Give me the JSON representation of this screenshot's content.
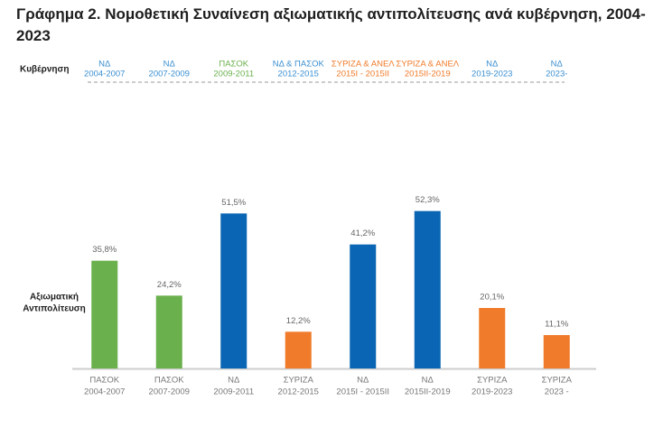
{
  "chart_data": {
    "type": "bar",
    "title": "Γράφημα 2. Νομοθετική Συναίνεση αξιωματικής αντιπολίτευσης ανά κυβέρνηση, 2004-2023",
    "government_label": "Κυβέρνηση",
    "governments": [
      {
        "name": "ΝΔ",
        "period": "2004-2007",
        "color": "#3a8fd0"
      },
      {
        "name": "ΝΔ",
        "period": "2007-2009",
        "color": "#3a8fd0"
      },
      {
        "name": "ΠΑΣΟΚ",
        "period": "2009-2011",
        "color": "#6ab04c"
      },
      {
        "name": "ΝΔ & ΠΑΣΟΚ",
        "period": "2012-2015",
        "color": "#3a8fd0"
      },
      {
        "name": "ΣΥΡΙΖΑ & ΑΝΕΛ",
        "period": "2015Ι - 2015ΙΙ",
        "color": "#f07b2a"
      },
      {
        "name": "ΣΥΡΙΖΑ & ΑΝΕΛ",
        "period": "2015ΙΙ-2019",
        "color": "#f07b2a"
      },
      {
        "name": "ΝΔ",
        "period": "2019-2023",
        "color": "#3a8fd0"
      },
      {
        "name": "ΝΔ",
        "period": "2023-",
        "color": "#3a8fd0"
      }
    ],
    "ylabel": [
      "Αξιωματική",
      "Αντιπολίτευση"
    ],
    "categories": [
      [
        "ΠΑΣΟΚ",
        "2004-2007"
      ],
      [
        "ΠΑΣΟΚ",
        "2007-2009"
      ],
      [
        "ΝΔ",
        "2009-2011"
      ],
      [
        "ΣΥΡΙΖΑ",
        "2012-2015"
      ],
      [
        "ΝΔ",
        "2015Ι - 2015ΙΙ"
      ],
      [
        "ΝΔ",
        "2015ΙΙ-2019"
      ],
      [
        "ΣΥΡΙΖΑ",
        "2019-2023"
      ],
      [
        "ΣΥΡΙΖΑ",
        "2023 -"
      ]
    ],
    "values": [
      35.8,
      24.2,
      51.5,
      12.2,
      41.2,
      52.3,
      20.1,
      11.1
    ],
    "value_labels": [
      "35,8%",
      "24,2%",
      "51,5%",
      "12,2%",
      "41,2%",
      "52,3%",
      "20,1%",
      "11,1%"
    ],
    "colors": [
      "#6ab04c",
      "#6ab04c",
      "#0a66b4",
      "#f07b2a",
      "#0a66b4",
      "#0a66b4",
      "#f07b2a",
      "#f07b2a"
    ],
    "ylim": [
      0,
      60
    ]
  }
}
